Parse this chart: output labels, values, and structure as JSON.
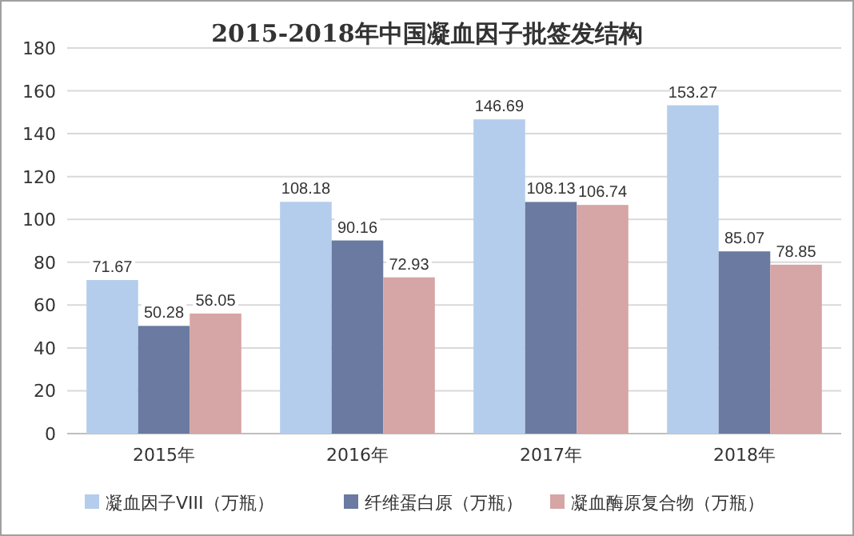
{
  "chart_data": {
    "type": "bar",
    "title": "2015-2018年中国凝血因子批签发结构",
    "categories": [
      "2015年",
      "2016年",
      "2017年",
      "2018年"
    ],
    "series": [
      {
        "name": "凝血因子VIII（万瓶）",
        "color": "#b4cdec",
        "values": [
          71.67,
          108.18,
          146.69,
          153.27
        ]
      },
      {
        "name": "纤维蛋白原（万瓶）",
        "color": "#6a7aa0",
        "values": [
          50.28,
          90.16,
          108.13,
          85.07
        ]
      },
      {
        "name": "凝血酶原复合物（万瓶）",
        "color": "#d6a5a5",
        "values": [
          56.05,
          72.93,
          106.74,
          78.85
        ]
      }
    ],
    "ylim": [
      0,
      180
    ],
    "yticks": [
      0,
      20,
      40,
      60,
      80,
      100,
      120,
      140,
      160,
      180
    ],
    "grid": "y",
    "legend": "bottom",
    "data_labels": true
  }
}
